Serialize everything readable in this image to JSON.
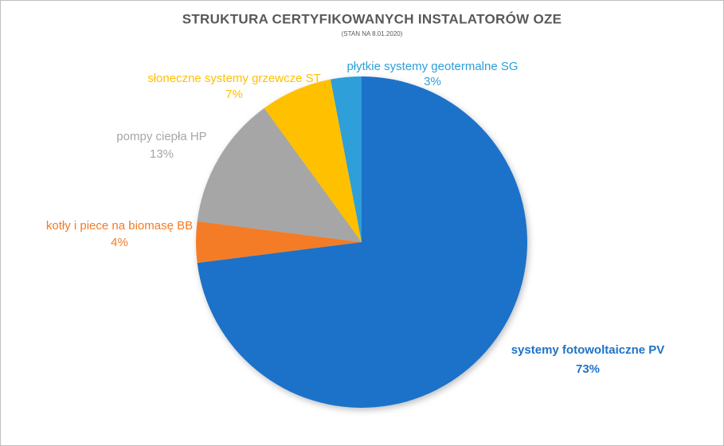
{
  "chart_data": {
    "type": "pie",
    "title": "STRUKTURA CERTYFIKOWANYCH  INSTALATORÓW OZE",
    "subtitle": "(STAN NA 8.01.2020)",
    "categories": [
      "systemy fotowoltaiczne PV",
      "kotły i piece na biomasę BB",
      "pompy ciepła HP",
      "słoneczne systemy grzewcze ST",
      "płytkie systemy geotermalne SG"
    ],
    "values": [
      73,
      4,
      13,
      7,
      3
    ],
    "value_labels": [
      "73%",
      "4%",
      "13%",
      "7%",
      "3%"
    ],
    "colors": [
      "#1f72c8",
      "#f47b25",
      "#a6a6a6",
      "#ffc000",
      "#2e9fd9"
    ]
  }
}
